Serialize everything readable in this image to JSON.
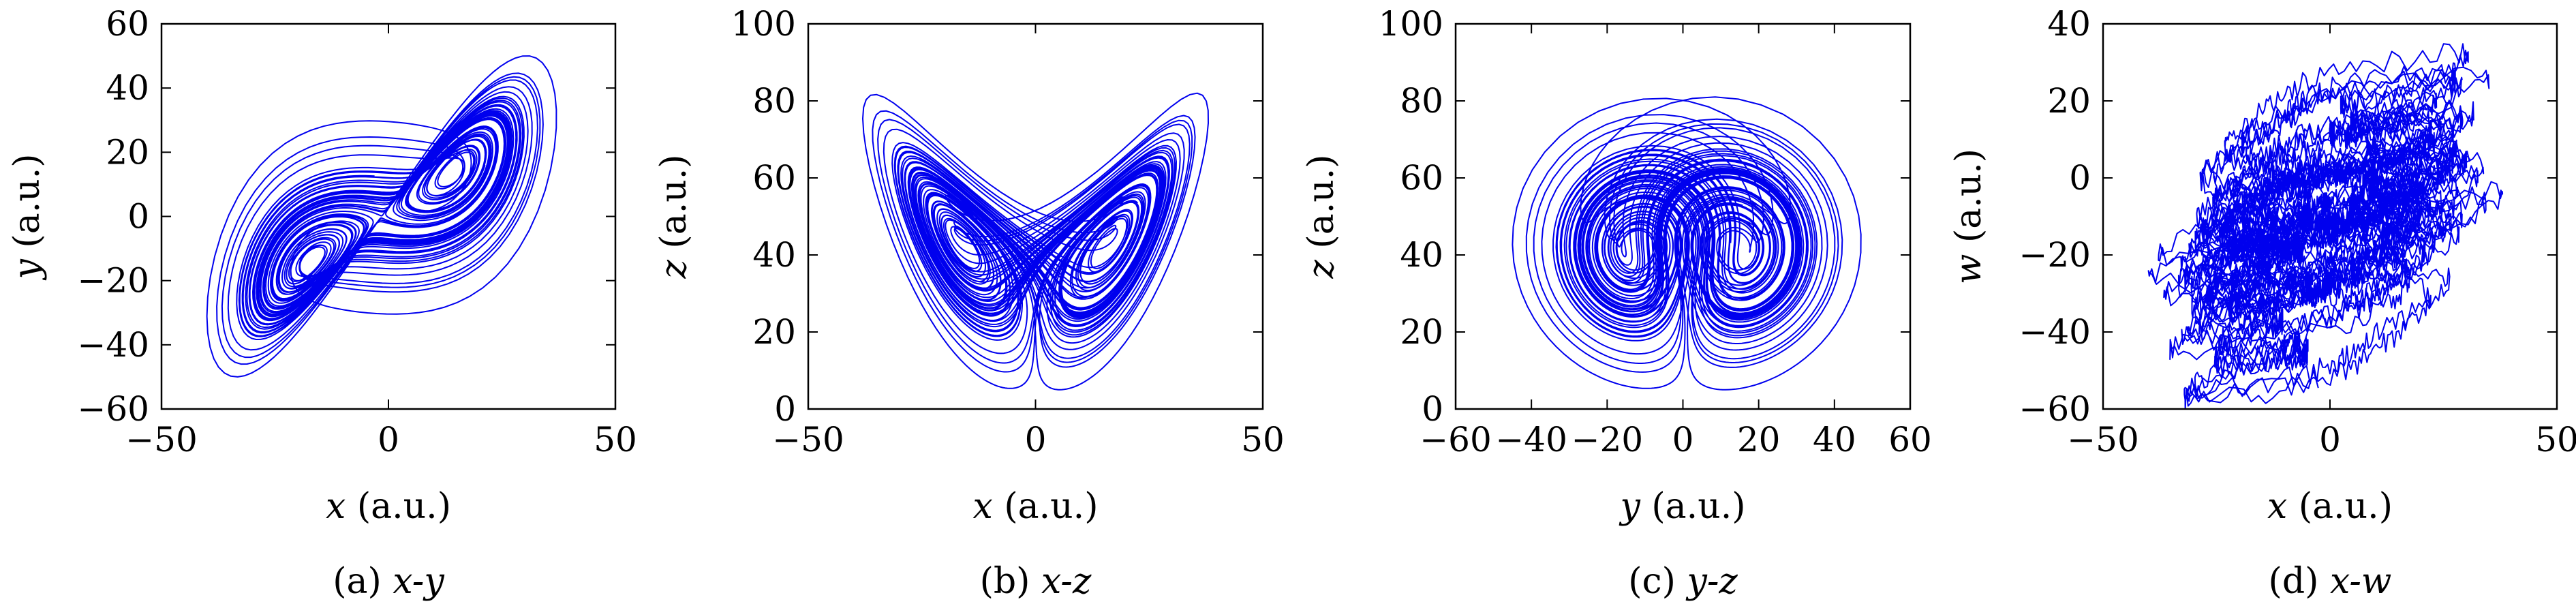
{
  "figure": {
    "colors": {
      "trajectory": "#0000ee",
      "axes": "#000000",
      "background": "#ffffff"
    }
  },
  "chart_data": [
    {
      "type": "line",
      "panel_id": "a",
      "caption": {
        "label": "(a)",
        "text": "x-y"
      },
      "xlabel": {
        "var": "x",
        "unit": "(a.u.)"
      },
      "ylabel": {
        "var": "y",
        "unit": "(a.u.)"
      },
      "xlim": [
        -50,
        50
      ],
      "ylim": [
        -60,
        60
      ],
      "xticks": [
        -50,
        0,
        50
      ],
      "yticks": [
        -60,
        -40,
        -20,
        0,
        20,
        40,
        60
      ],
      "xtick_labels": [
        "−50",
        "0",
        "50"
      ],
      "ytick_labels": [
        "−60",
        "−40",
        "−20",
        "0",
        "20",
        "40",
        "60"
      ],
      "grid": false,
      "legend": "none",
      "series": [
        {
          "color": "#0000ee",
          "pair": [
            "x",
            "y"
          ]
        }
      ]
    },
    {
      "type": "line",
      "panel_id": "b",
      "caption": {
        "label": "(b)",
        "text": "x-z"
      },
      "xlabel": {
        "var": "x",
        "unit": "(a.u.)"
      },
      "ylabel": {
        "var": "z",
        "unit": "(a.u.)"
      },
      "xlim": [
        -50,
        50
      ],
      "ylim": [
        0,
        100
      ],
      "xticks": [
        -50,
        0,
        50
      ],
      "yticks": [
        0,
        20,
        40,
        60,
        80,
        100
      ],
      "xtick_labels": [
        "−50",
        "0",
        "50"
      ],
      "ytick_labels": [
        "0",
        "20",
        "40",
        "60",
        "80",
        "100"
      ],
      "grid": false,
      "legend": "none",
      "series": [
        {
          "color": "#0000ee",
          "pair": [
            "x",
            "z"
          ]
        }
      ]
    },
    {
      "type": "line",
      "panel_id": "c",
      "caption": {
        "label": "(c)",
        "text": "y-z"
      },
      "xlabel": {
        "var": "y",
        "unit": "(a.u.)"
      },
      "ylabel": {
        "var": "z",
        "unit": "(a.u.)"
      },
      "xlim": [
        -60,
        60
      ],
      "ylim": [
        0,
        100
      ],
      "xticks": [
        -60,
        -40,
        -20,
        0,
        20,
        40,
        60
      ],
      "yticks": [
        0,
        20,
        40,
        60,
        80,
        100
      ],
      "xtick_labels": [
        "−60",
        "−40",
        "−20",
        "0",
        "20",
        "40",
        "60"
      ],
      "ytick_labels": [
        "0",
        "20",
        "40",
        "60",
        "80",
        "100"
      ],
      "grid": false,
      "legend": "none",
      "series": [
        {
          "color": "#0000ee",
          "pair": [
            "y",
            "z"
          ]
        }
      ]
    },
    {
      "type": "line",
      "panel_id": "d",
      "caption": {
        "label": "(d)",
        "text": "x-w"
      },
      "xlabel": {
        "var": "x",
        "unit": "(a.u.)"
      },
      "ylabel": {
        "var": "w",
        "unit": "(a.u.)"
      },
      "xlim": [
        -50,
        50
      ],
      "ylim": [
        -60,
        40
      ],
      "xticks": [
        -50,
        0,
        50
      ],
      "yticks": [
        -60,
        -40,
        -20,
        0,
        20,
        40
      ],
      "xtick_labels": [
        "−50",
        "0",
        "50"
      ],
      "ytick_labels": [
        "−60",
        "−40",
        "−20",
        "0",
        "20",
        "40"
      ],
      "grid": false,
      "legend": "none",
      "series": [
        {
          "color": "#0000ee",
          "pair": [
            "x",
            "w"
          ]
        }
      ]
    }
  ]
}
